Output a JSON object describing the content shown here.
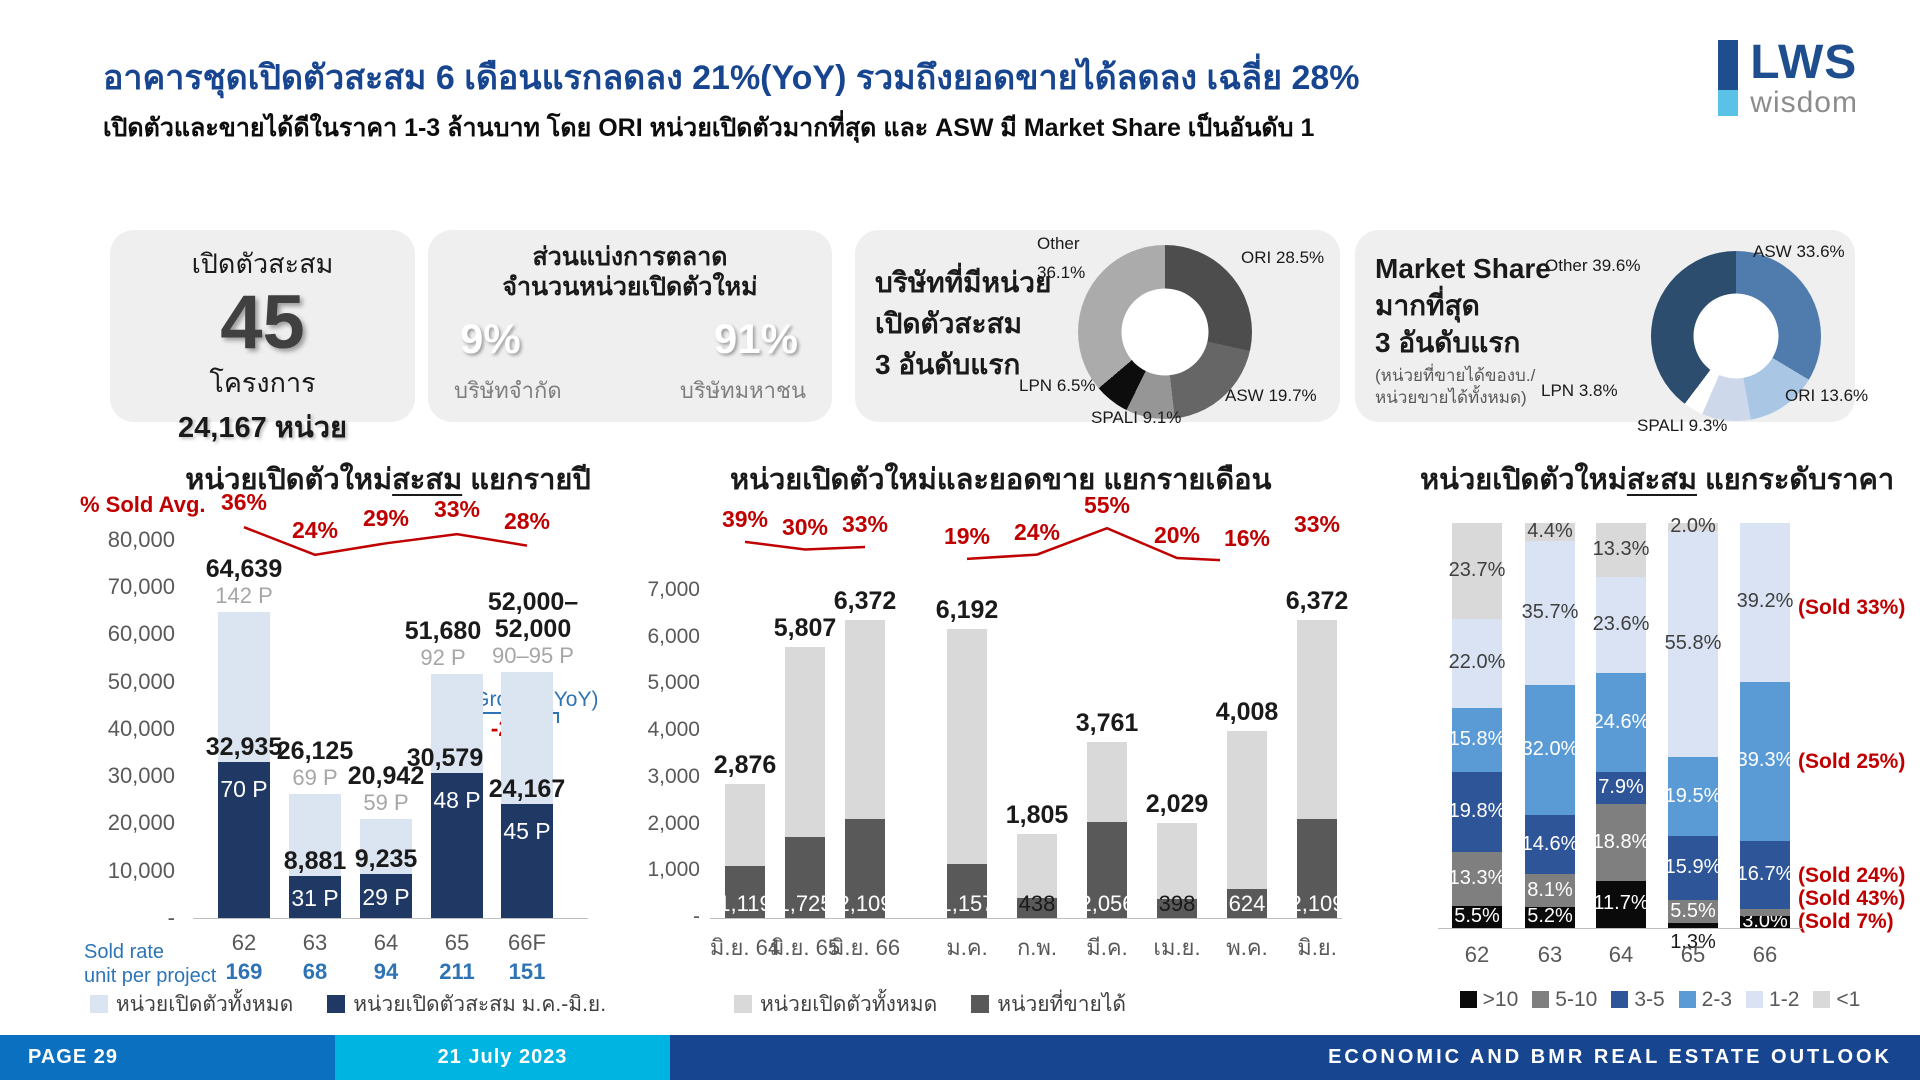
{
  "header": {
    "title": "อาคารชุดเปิดตัวสะสม 6 เดือนแรกลดลง 21%(YoY) รวมถึงยอดขายได้ลดลง เฉลี่ย 28%",
    "subtitle": "เปิดตัวและขายได้ดีในราคา 1-3 ล้านบาท โดย ORI หน่วยเปิดตัวมากที่สุด และ ASW มี Market Share เป็นอันดับ 1"
  },
  "logo": {
    "text": "LWS",
    "subtext": "wisdom"
  },
  "cards": {
    "launch": {
      "title": "เปิดตัวสะสม",
      "value": "45",
      "unit": "โครงการ",
      "total": "24,167 หน่วย"
    },
    "split": {
      "title1": "ส่วนแบ่งการตลาด",
      "title2": "จำนวนหน่วยเปิดตัวใหม่",
      "segments": [
        {
          "pct": "9%",
          "label": "บริษัทจำกัด",
          "color": "#404040"
        },
        {
          "pct": "91%",
          "label": "บริษัทมหาชน",
          "color": "#4472c4"
        }
      ]
    },
    "top_launch": {
      "caption": [
        "บริษัทที่มีหน่วย",
        "เปิดตัวสะสม",
        "3 อันดับแรก"
      ]
    },
    "market_share": {
      "caption": [
        "Market Share",
        "มากที่สุด",
        "3 อันดับแรก"
      ],
      "note": [
        "(หน่วยที่ขายได้ของบ./",
        "หน่วยขายได้ทั้งหมด)"
      ]
    }
  },
  "chart_data": [
    {
      "id": "top-launch-donut",
      "type": "pie",
      "title": "บริษัทที่มีหน่วยเปิดตัวสะสม 3 อันดับแรก",
      "slices": [
        {
          "name": "ORI",
          "pct": "28.5%",
          "value": 28.5,
          "color": "#4d4d4d"
        },
        {
          "name": "ASW",
          "pct": "19.7%",
          "value": 19.7,
          "color": "#666666"
        },
        {
          "name": "SPALI",
          "pct": "9.1%",
          "value": 9.1,
          "color": "#969696"
        },
        {
          "name": "LPN",
          "pct": "6.5%",
          "value": 6.5,
          "color": "#0d0d0d"
        },
        {
          "name": "Other",
          "pct": "36.1%",
          "value": 36.1,
          "color": "#ababab"
        }
      ]
    },
    {
      "id": "market-share-donut",
      "type": "pie",
      "title": "Market Share มากที่สุด 3 อันดับแรก",
      "slices": [
        {
          "name": "ASW",
          "pct": "33.6%",
          "value": 33.6,
          "color": "#4f7cac"
        },
        {
          "name": "ORI",
          "pct": "13.6%",
          "value": 13.6,
          "color": "#a9c6e4"
        },
        {
          "name": "SPALI",
          "pct": "9.3%",
          "value": 9.3,
          "color": "#cdd9eb"
        },
        {
          "name": "LPN",
          "pct": "3.8%",
          "value": 3.8,
          "color": "#ffffff"
        },
        {
          "name": "Other",
          "pct": "39.6%",
          "value": 39.6,
          "color": "#2d4d6e"
        }
      ]
    },
    {
      "id": "yearly-launch",
      "type": "bar",
      "title_pre": "หน่วยเปิดตัวใหม่",
      "title_underline": "สะสม",
      "title_post": " แยกรายปี",
      "pct_axis_label": "% Sold Avg.",
      "categories": [
        "62",
        "63",
        "64",
        "65",
        "66F"
      ],
      "series": [
        {
          "name": "หน่วยเปิดตัวทั้งหมด",
          "color": "#dbe5f1",
          "values": [
            64639,
            26125,
            20942,
            51680,
            52000
          ]
        },
        {
          "name": "หน่วยเปิดตัวสะสม ม.ค.-มิ.ย.",
          "color": "#1f3864",
          "values": [
            32935,
            8881,
            9235,
            30579,
            24167
          ]
        }
      ],
      "total_labels": [
        [
          "64,639"
        ],
        [
          "26,125"
        ],
        [
          "20,942"
        ],
        [
          "51,680"
        ],
        [
          "52,000–",
          "52,000"
        ]
      ],
      "total_projects": [
        "142 P",
        "69 P",
        "59 P",
        "92 P",
        "90–95 P"
      ],
      "cum_labels": [
        "32,935",
        "8,881",
        "9,235",
        "30,579",
        "24,167"
      ],
      "cum_projects": [
        "70 P",
        "31 P",
        "29 P",
        "48 P",
        "45 P"
      ],
      "sold_avg_pct": [
        36,
        24,
        29,
        33,
        28
      ],
      "sold_rate_label": [
        "Sold rate",
        "unit per project"
      ],
      "sold_rate": [
        "169",
        "68",
        "94",
        "211",
        "151"
      ],
      "unit_growth_label": "Unit Growth (YoY)",
      "unit_growth_marker": "▼",
      "unit_growth_value": "-21%",
      "y_ticks": [
        "80,000",
        "70,000",
        "60,000",
        "50,000",
        "40,000",
        "30,000",
        "20,000",
        "10,000",
        "-"
      ],
      "ylim": [
        0,
        80000
      ]
    },
    {
      "id": "monthly-launch-sales",
      "type": "bar",
      "title": "หน่วยเปิดตัวใหม่และยอดขาย แยกรายเดือน",
      "categories": [
        "มิ.ย. 64",
        "มิ.ย. 65",
        "มิ.ย. 66",
        "ม.ค.",
        "ก.พ.",
        "มี.ค.",
        "เม.ย.",
        "พ.ค.",
        "มิ.ย."
      ],
      "series": [
        {
          "name": "หน่วยเปิดตัวทั้งหมด",
          "color": "#d9d9d9",
          "values": [
            2876,
            5807,
            6372,
            6192,
            1805,
            3761,
            2029,
            4008,
            6372
          ]
        },
        {
          "name": "หน่วยที่ขายได้",
          "color": "#595959",
          "values": [
            1119,
            1725,
            2109,
            1157,
            438,
            2056,
            398,
            624,
            2109
          ]
        }
      ],
      "total_labels": [
        "2,876",
        "5,807",
        "6,372",
        "6,192",
        "1,805",
        "3,761",
        "2,029",
        "4,008",
        "6,372"
      ],
      "sold_labels": [
        "1,119",
        "1,725",
        "2,109",
        "1,157",
        "438",
        "2,056",
        "398",
        "624",
        "2,109"
      ],
      "sold_pct": [
        39,
        30,
        33,
        19,
        24,
        55,
        20,
        16,
        33
      ],
      "group_sizes": [
        3,
        6
      ],
      "y_ticks": [
        "7,000",
        "6,000",
        "5,000",
        "4,000",
        "3,000",
        "2,000",
        "1,000",
        "-"
      ],
      "ylim": [
        0,
        7000
      ]
    },
    {
      "id": "price-level",
      "type": "bar",
      "title_pre": "หน่วยเปิดตัวใหม่",
      "title_underline": "สะสม",
      "title_post": " แยกระดับราคา",
      "categories": [
        "62",
        "63",
        "64",
        "65",
        "66"
      ],
      "series": [
        {
          "name": ">10",
          "color": "#0a0a0a",
          "values": [
            5.5,
            5.2,
            11.7,
            1.3,
            3.0
          ],
          "labels": [
            "5.5%",
            "5.2%",
            "11.7%",
            "1.3%",
            "3.0%"
          ]
        },
        {
          "name": "5-10",
          "color": "#7f7f7f",
          "values": [
            13.3,
            8.1,
            18.8,
            5.5,
            1.8
          ],
          "labels": [
            "13.3%",
            "8.1%",
            "18.8%",
            "5.5%",
            "1.8%"
          ]
        },
        {
          "name": "3-5",
          "color": "#2e5597",
          "values": [
            19.8,
            14.6,
            7.9,
            15.9,
            16.7
          ],
          "labels": [
            "19.8%",
            "14.6%",
            "7.9%",
            "15.9%",
            "16.7%"
          ]
        },
        {
          "name": "2-3",
          "color": "#5b9bd5",
          "values": [
            15.8,
            32.0,
            24.6,
            19.5,
            39.3
          ],
          "labels": [
            "15.8%",
            "32.0%",
            "24.6%",
            "19.5%",
            "39.3%"
          ]
        },
        {
          "name": "1-2",
          "color": "#dae3f3",
          "values": [
            22.0,
            35.7,
            23.6,
            55.8,
            39.2
          ],
          "labels": [
            "22.0%",
            "35.7%",
            "23.6%",
            "55.8%",
            "39.2%"
          ]
        },
        {
          "name": "<1",
          "color": "#d9d9d9",
          "values": [
            23.7,
            4.4,
            13.3,
            2.0,
            0
          ],
          "labels": [
            "23.7%",
            "4.4%",
            "13.3%",
            "2.0%",
            ""
          ]
        }
      ],
      "sold_annotations": [
        "(Sold 33%)",
        "(Sold 25%)",
        "(Sold 24%)",
        "(Sold 43%)",
        "(Sold 7%)"
      ],
      "ylim": [
        0,
        100
      ]
    }
  ],
  "footer": {
    "page": "PAGE 29",
    "date": "21 July 2023",
    "right": "ECONOMIC AND BMR REAL ESTATE OUTLOOK"
  }
}
